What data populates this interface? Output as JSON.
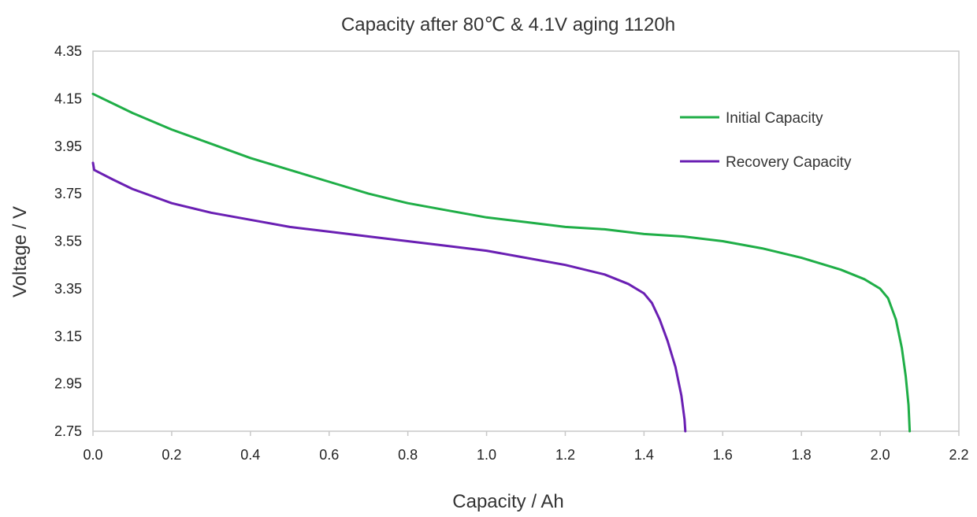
{
  "chart_data": {
    "type": "line",
    "title": "Capacity after 80℃ & 4.1V aging 1120h",
    "xlabel": "Capacity / Ah",
    "ylabel": "Voltage / V",
    "xlim": [
      0.0,
      2.2
    ],
    "ylim": [
      2.75,
      4.35
    ],
    "x_ticks": [
      "0.0",
      "0.2",
      "0.4",
      "0.6",
      "0.8",
      "1.0",
      "1.2",
      "1.4",
      "1.6",
      "1.8",
      "2.0",
      "2.2"
    ],
    "y_ticks": [
      "4.35",
      "4.15",
      "3.95",
      "3.75",
      "3.55",
      "3.35",
      "3.15",
      "2.95",
      "2.75"
    ],
    "grid": false,
    "legend_position": "top-right",
    "series": [
      {
        "name": "Initial Capacity",
        "color": "#1fae47",
        "points": [
          [
            0.0,
            4.17
          ],
          [
            0.05,
            4.13
          ],
          [
            0.1,
            4.09
          ],
          [
            0.2,
            4.02
          ],
          [
            0.3,
            3.96
          ],
          [
            0.4,
            3.9
          ],
          [
            0.5,
            3.85
          ],
          [
            0.6,
            3.8
          ],
          [
            0.7,
            3.75
          ],
          [
            0.8,
            3.71
          ],
          [
            0.9,
            3.68
          ],
          [
            1.0,
            3.65
          ],
          [
            1.1,
            3.63
          ],
          [
            1.2,
            3.61
          ],
          [
            1.3,
            3.6
          ],
          [
            1.4,
            3.58
          ],
          [
            1.5,
            3.57
          ],
          [
            1.6,
            3.55
          ],
          [
            1.7,
            3.52
          ],
          [
            1.8,
            3.48
          ],
          [
            1.9,
            3.43
          ],
          [
            1.96,
            3.39
          ],
          [
            2.0,
            3.35
          ],
          [
            2.02,
            3.31
          ],
          [
            2.04,
            3.22
          ],
          [
            2.055,
            3.1
          ],
          [
            2.065,
            2.98
          ],
          [
            2.072,
            2.86
          ],
          [
            2.075,
            2.75
          ]
        ]
      },
      {
        "name": "Recovery Capacity",
        "color": "#6a1fb3",
        "points": [
          [
            0.0,
            3.88
          ],
          [
            0.003,
            3.85
          ],
          [
            0.05,
            3.81
          ],
          [
            0.1,
            3.77
          ],
          [
            0.2,
            3.71
          ],
          [
            0.3,
            3.67
          ],
          [
            0.4,
            3.64
          ],
          [
            0.5,
            3.61
          ],
          [
            0.6,
            3.59
          ],
          [
            0.7,
            3.57
          ],
          [
            0.8,
            3.55
          ],
          [
            0.9,
            3.53
          ],
          [
            1.0,
            3.51
          ],
          [
            1.1,
            3.48
          ],
          [
            1.2,
            3.45
          ],
          [
            1.3,
            3.41
          ],
          [
            1.36,
            3.37
          ],
          [
            1.4,
            3.33
          ],
          [
            1.42,
            3.29
          ],
          [
            1.44,
            3.22
          ],
          [
            1.46,
            3.13
          ],
          [
            1.48,
            3.02
          ],
          [
            1.495,
            2.9
          ],
          [
            1.503,
            2.8
          ],
          [
            1.505,
            2.75
          ]
        ]
      }
    ]
  }
}
